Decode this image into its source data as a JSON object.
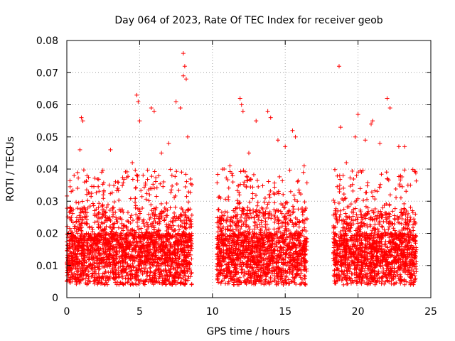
{
  "chart_data": {
    "type": "scatter",
    "title": "Day 064 of 2023, Rate Of TEC Index for receiver geob",
    "xlabel": "GPS time / hours",
    "ylabel": "ROTI / TECUs",
    "xlim": [
      0,
      25
    ],
    "ylim": [
      0,
      0.08
    ],
    "x_ticks": [
      0,
      5,
      10,
      15,
      20,
      25
    ],
    "x_tick_labels": [
      "0",
      "5",
      "10",
      "15",
      "20",
      "25"
    ],
    "y_ticks": [
      0,
      0.01,
      0.02,
      0.03,
      0.04,
      0.05,
      0.06,
      0.07,
      0.08
    ],
    "y_tick_labels": [
      "0",
      "0.01",
      "0.02",
      "0.03",
      "0.04",
      "0.05",
      "0.06",
      "0.07",
      "0.08"
    ],
    "grid": true,
    "legend": "none",
    "marker": "+",
    "marker_color": "#ff0000",
    "data_coverage": [
      [
        0,
        8.6
      ],
      [
        10.3,
        16.5
      ],
      [
        18.3,
        24
      ]
    ],
    "series": [
      {
        "points": [
          [
            0.3,
            0.033
          ],
          [
            0.5,
            0.038
          ],
          [
            1.0,
            0.056
          ],
          [
            1.1,
            0.055
          ],
          [
            0.9,
            0.046
          ],
          [
            2.5,
            0.032
          ],
          [
            3.0,
            0.046
          ],
          [
            3.5,
            0.036
          ],
          [
            4.5,
            0.042
          ],
          [
            4.8,
            0.063
          ],
          [
            4.9,
            0.061
          ],
          [
            5.0,
            0.055
          ],
          [
            5.8,
            0.059
          ],
          [
            6.0,
            0.058
          ],
          [
            6.5,
            0.045
          ],
          [
            7.0,
            0.048
          ],
          [
            7.5,
            0.061
          ],
          [
            7.8,
            0.059
          ],
          [
            8.0,
            0.076
          ],
          [
            8.1,
            0.072
          ],
          [
            8.0,
            0.069
          ],
          [
            8.2,
            0.068
          ],
          [
            8.3,
            0.05
          ],
          [
            10.8,
            0.04
          ],
          [
            11.2,
            0.041
          ],
          [
            11.9,
            0.062
          ],
          [
            12.0,
            0.06
          ],
          [
            12.1,
            0.058
          ],
          [
            12.5,
            0.045
          ],
          [
            13.0,
            0.055
          ],
          [
            13.8,
            0.058
          ],
          [
            14.0,
            0.056
          ],
          [
            14.5,
            0.049
          ],
          [
            15.0,
            0.047
          ],
          [
            15.5,
            0.052
          ],
          [
            15.7,
            0.05
          ],
          [
            16.3,
            0.041
          ],
          [
            18.7,
            0.072
          ],
          [
            18.8,
            0.053
          ],
          [
            19.2,
            0.042
          ],
          [
            19.8,
            0.05
          ],
          [
            20.0,
            0.057
          ],
          [
            20.5,
            0.049
          ],
          [
            20.9,
            0.054
          ],
          [
            21.0,
            0.055
          ],
          [
            21.5,
            0.048
          ],
          [
            22.0,
            0.062
          ],
          [
            22.2,
            0.059
          ],
          [
            22.8,
            0.047
          ],
          [
            23.2,
            0.047
          ],
          [
            23.6,
            0.035
          ]
        ]
      }
    ]
  }
}
